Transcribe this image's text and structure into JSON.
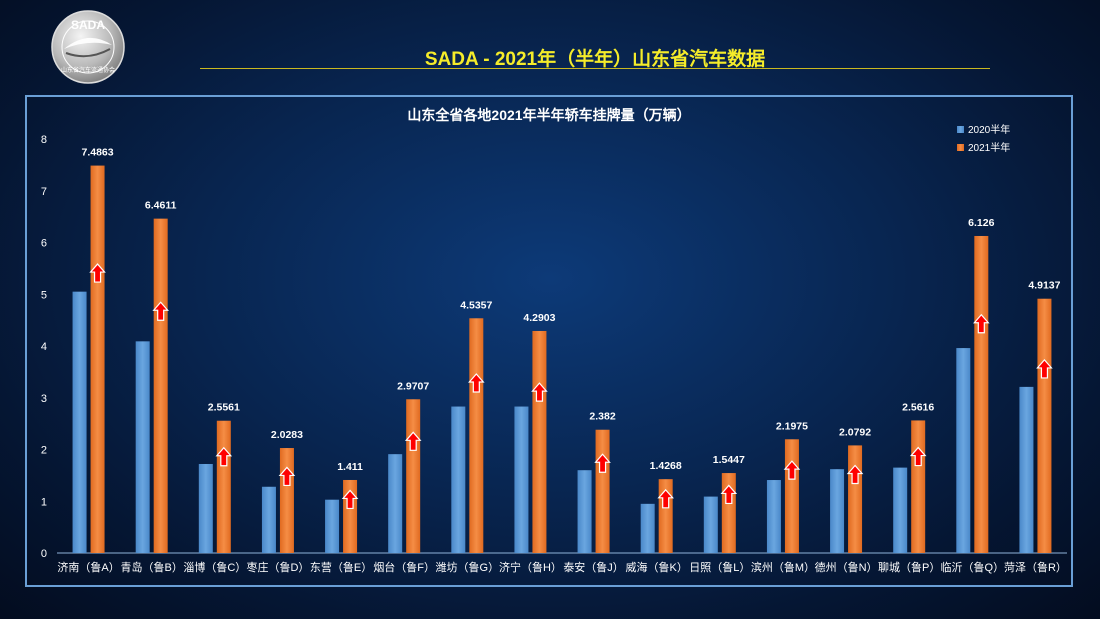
{
  "header": {
    "title": "SADA -  2021年（半年）山东省汽车数据",
    "logo_text": "SADA",
    "logo_subtext": "山东省汽车流通协会"
  },
  "colors": {
    "series_2020": "#5b9bd5",
    "series_2021": "#ed7d31",
    "arrow": "#ff0000",
    "title": "#f5ec2a"
  },
  "chart_data": {
    "type": "bar",
    "title": "山东全省各地2021年半年轿车挂牌量（万辆）",
    "categories": [
      "济南（鲁A）",
      "青岛（鲁B）",
      "淄博（鲁C）",
      "枣庄（鲁D）",
      "东营（鲁E）",
      "烟台（鲁F）",
      "潍坊（鲁G）",
      "济宁（鲁H）",
      "泰安（鲁J）",
      "威海（鲁K）",
      "日照（鲁L）",
      "滨州（鲁M）",
      "德州（鲁N）",
      "聊城（鲁P）",
      "临沂（鲁Q）",
      "菏泽（鲁R）"
    ],
    "series": [
      {
        "name": "2020半年",
        "values": [
          5.05,
          4.09,
          1.72,
          1.28,
          1.03,
          1.91,
          2.83,
          2.83,
          1.6,
          0.95,
          1.09,
          1.41,
          1.62,
          1.65,
          3.96,
          3.21
        ],
        "labels": [
          "",
          "",
          "",
          "",
          "",
          "",
          "",
          "",
          "",
          "",
          "",
          "",
          "",
          "",
          "",
          ""
        ]
      },
      {
        "name": "2021半年",
        "values": [
          7.4863,
          6.4611,
          2.5561,
          2.0283,
          1.411,
          2.9707,
          4.5357,
          4.2903,
          2.382,
          1.4268,
          1.5447,
          2.1975,
          2.0792,
          2.5616,
          6.126,
          4.9137
        ],
        "labels": [
          "7.4863",
          "6.4611",
          "2.5561",
          "2.0283",
          "1.411",
          "2.9707",
          "4.5357",
          "4.2903",
          "2.382",
          "1.4268",
          "1.5447",
          "2.1975",
          "2.0792",
          "2.5616",
          "6.126",
          "4.9137"
        ]
      }
    ],
    "yticks": [
      "0",
      "1",
      "2",
      "3",
      "4",
      "5",
      "6",
      "7",
      "8"
    ],
    "ylim": [
      0,
      8
    ],
    "legend_position": "top-right",
    "grid": false
  }
}
